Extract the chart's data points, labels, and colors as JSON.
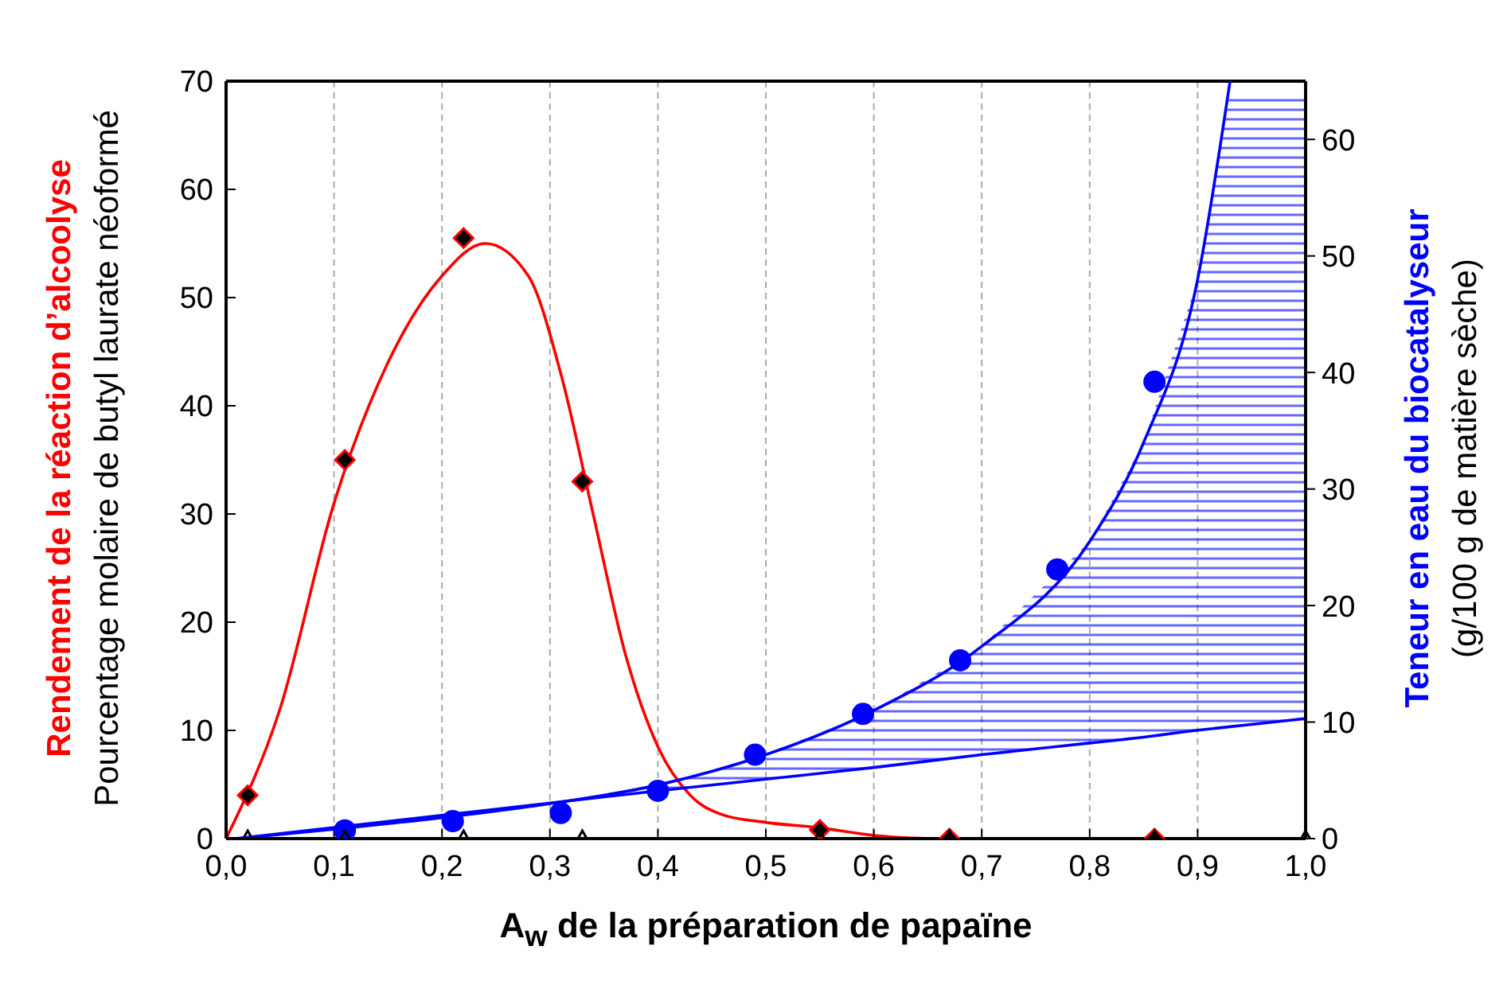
{
  "chart_data": {
    "type": "line",
    "xlabel": "A$_{w}$ de la préparation de papaïne",
    "ylabel": "Rendement de la réaction d’alcoolyse\nPourcentage molaire de butyl laurate néoformé",
    "y2label": "Teneur en eau du biocatalyseur\n(g/100 g de matière sèche)",
    "xlim": [
      0,
      1
    ],
    "xticks": [
      {
        "value": 0,
        "label": "0,0"
      },
      {
        "value": 0.1,
        "label": "0,1"
      },
      {
        "value": 0.2,
        "label": "0,2"
      },
      {
        "value": 0.3,
        "label": "0,3"
      },
      {
        "value": 0.4,
        "label": "0,4"
      },
      {
        "value": 0.5,
        "label": "0,5"
      },
      {
        "value": 0.6,
        "label": "0,6"
      },
      {
        "value": 0.7,
        "label": "0,7"
      },
      {
        "value": 0.8,
        "label": "0,8"
      },
      {
        "value": 0.9,
        "label": "0,9"
      },
      {
        "value": 1,
        "label": "1,0"
      }
    ],
    "ylim": [
      0,
      70
    ],
    "yticks": [
      0,
      10,
      20,
      30,
      40,
      50,
      60,
      70
    ],
    "y2lim": [
      0,
      65
    ],
    "y2ticks": [
      0,
      10,
      20,
      30,
      40,
      50,
      60
    ],
    "grid": "x",
    "legend": false,
    "series": [
      {
        "color": "#ff0000",
        "marker": "none",
        "x": [
          0,
          0.05,
          0.1,
          0.15,
          0.2,
          0.24,
          0.28,
          0.31,
          0.34,
          0.37,
          0.4,
          0.43,
          0.46,
          0.5,
          0.55,
          0.6,
          0.65
        ],
        "values": [
          0,
          12,
          31,
          44,
          52,
          55,
          52,
          43,
          30,
          17,
          8.5,
          4,
          2.2,
          1.5,
          1,
          0.3,
          0
        ]
      },
      {
        "type": "scatter",
        "color": "#ff0000",
        "marker": "diamond",
        "x": [
          0.02,
          0.11,
          0.22,
          0.33,
          0.55,
          0.67,
          0.86
        ],
        "values": [
          4,
          35,
          55.5,
          33,
          0.8,
          0,
          0
        ]
      },
      {
        "axis": "y2",
        "color": "#0000ff",
        "marker": "none",
        "x": [
          0.01,
          0.1,
          0.2,
          0.3,
          0.4,
          0.5,
          0.6,
          0.7,
          0.8,
          0.85,
          0.9,
          0.93
        ],
        "values": [
          0,
          0.8,
          1.8,
          3,
          4.6,
          7.2,
          11,
          16.5,
          25.5,
          34,
          48,
          65
        ]
      },
      {
        "axis": "y2",
        "color": "#0000ff",
        "marker": "none",
        "x": [
          0.01,
          0.4,
          0.5,
          0.6,
          0.7,
          0.8,
          0.85,
          0.9,
          0.93,
          0.95,
          1
        ],
        "values": [
          0,
          4.1,
          5.1,
          6.1,
          7.2,
          8.2,
          8.7,
          9.3,
          9.6,
          9.8,
          10.3
        ],
        "lower": [
          null,
          4.1,
          5.1,
          6.1,
          7.2,
          8.2,
          8.7,
          9.3,
          9.6,
          9.8,
          10.3
        ],
        "upper": [
          null,
          4.6,
          7.2,
          11,
          16.5,
          25.5,
          34,
          48,
          64,
          64,
          64
        ]
      },
      {
        "type": "scatter",
        "axis": "y2",
        "color": "#0000ff",
        "marker": "circle",
        "x": [
          0.11,
          0.21,
          0.31,
          0.4,
          0.49,
          0.59,
          0.68,
          0.77,
          0.86
        ],
        "values": [
          0.7,
          1.5,
          2.2,
          4.1,
          7.2,
          10.7,
          15.3,
          23.1,
          39.2
        ]
      },
      {
        "type": "scatter",
        "color": "#000000",
        "marker": "triangle",
        "x": [
          0.02,
          0.11,
          0.22,
          0.33,
          0.55,
          0.67,
          0.86,
          1
        ],
        "values": [
          0,
          0,
          0,
          0,
          0,
          0,
          0,
          0
        ]
      }
    ]
  }
}
